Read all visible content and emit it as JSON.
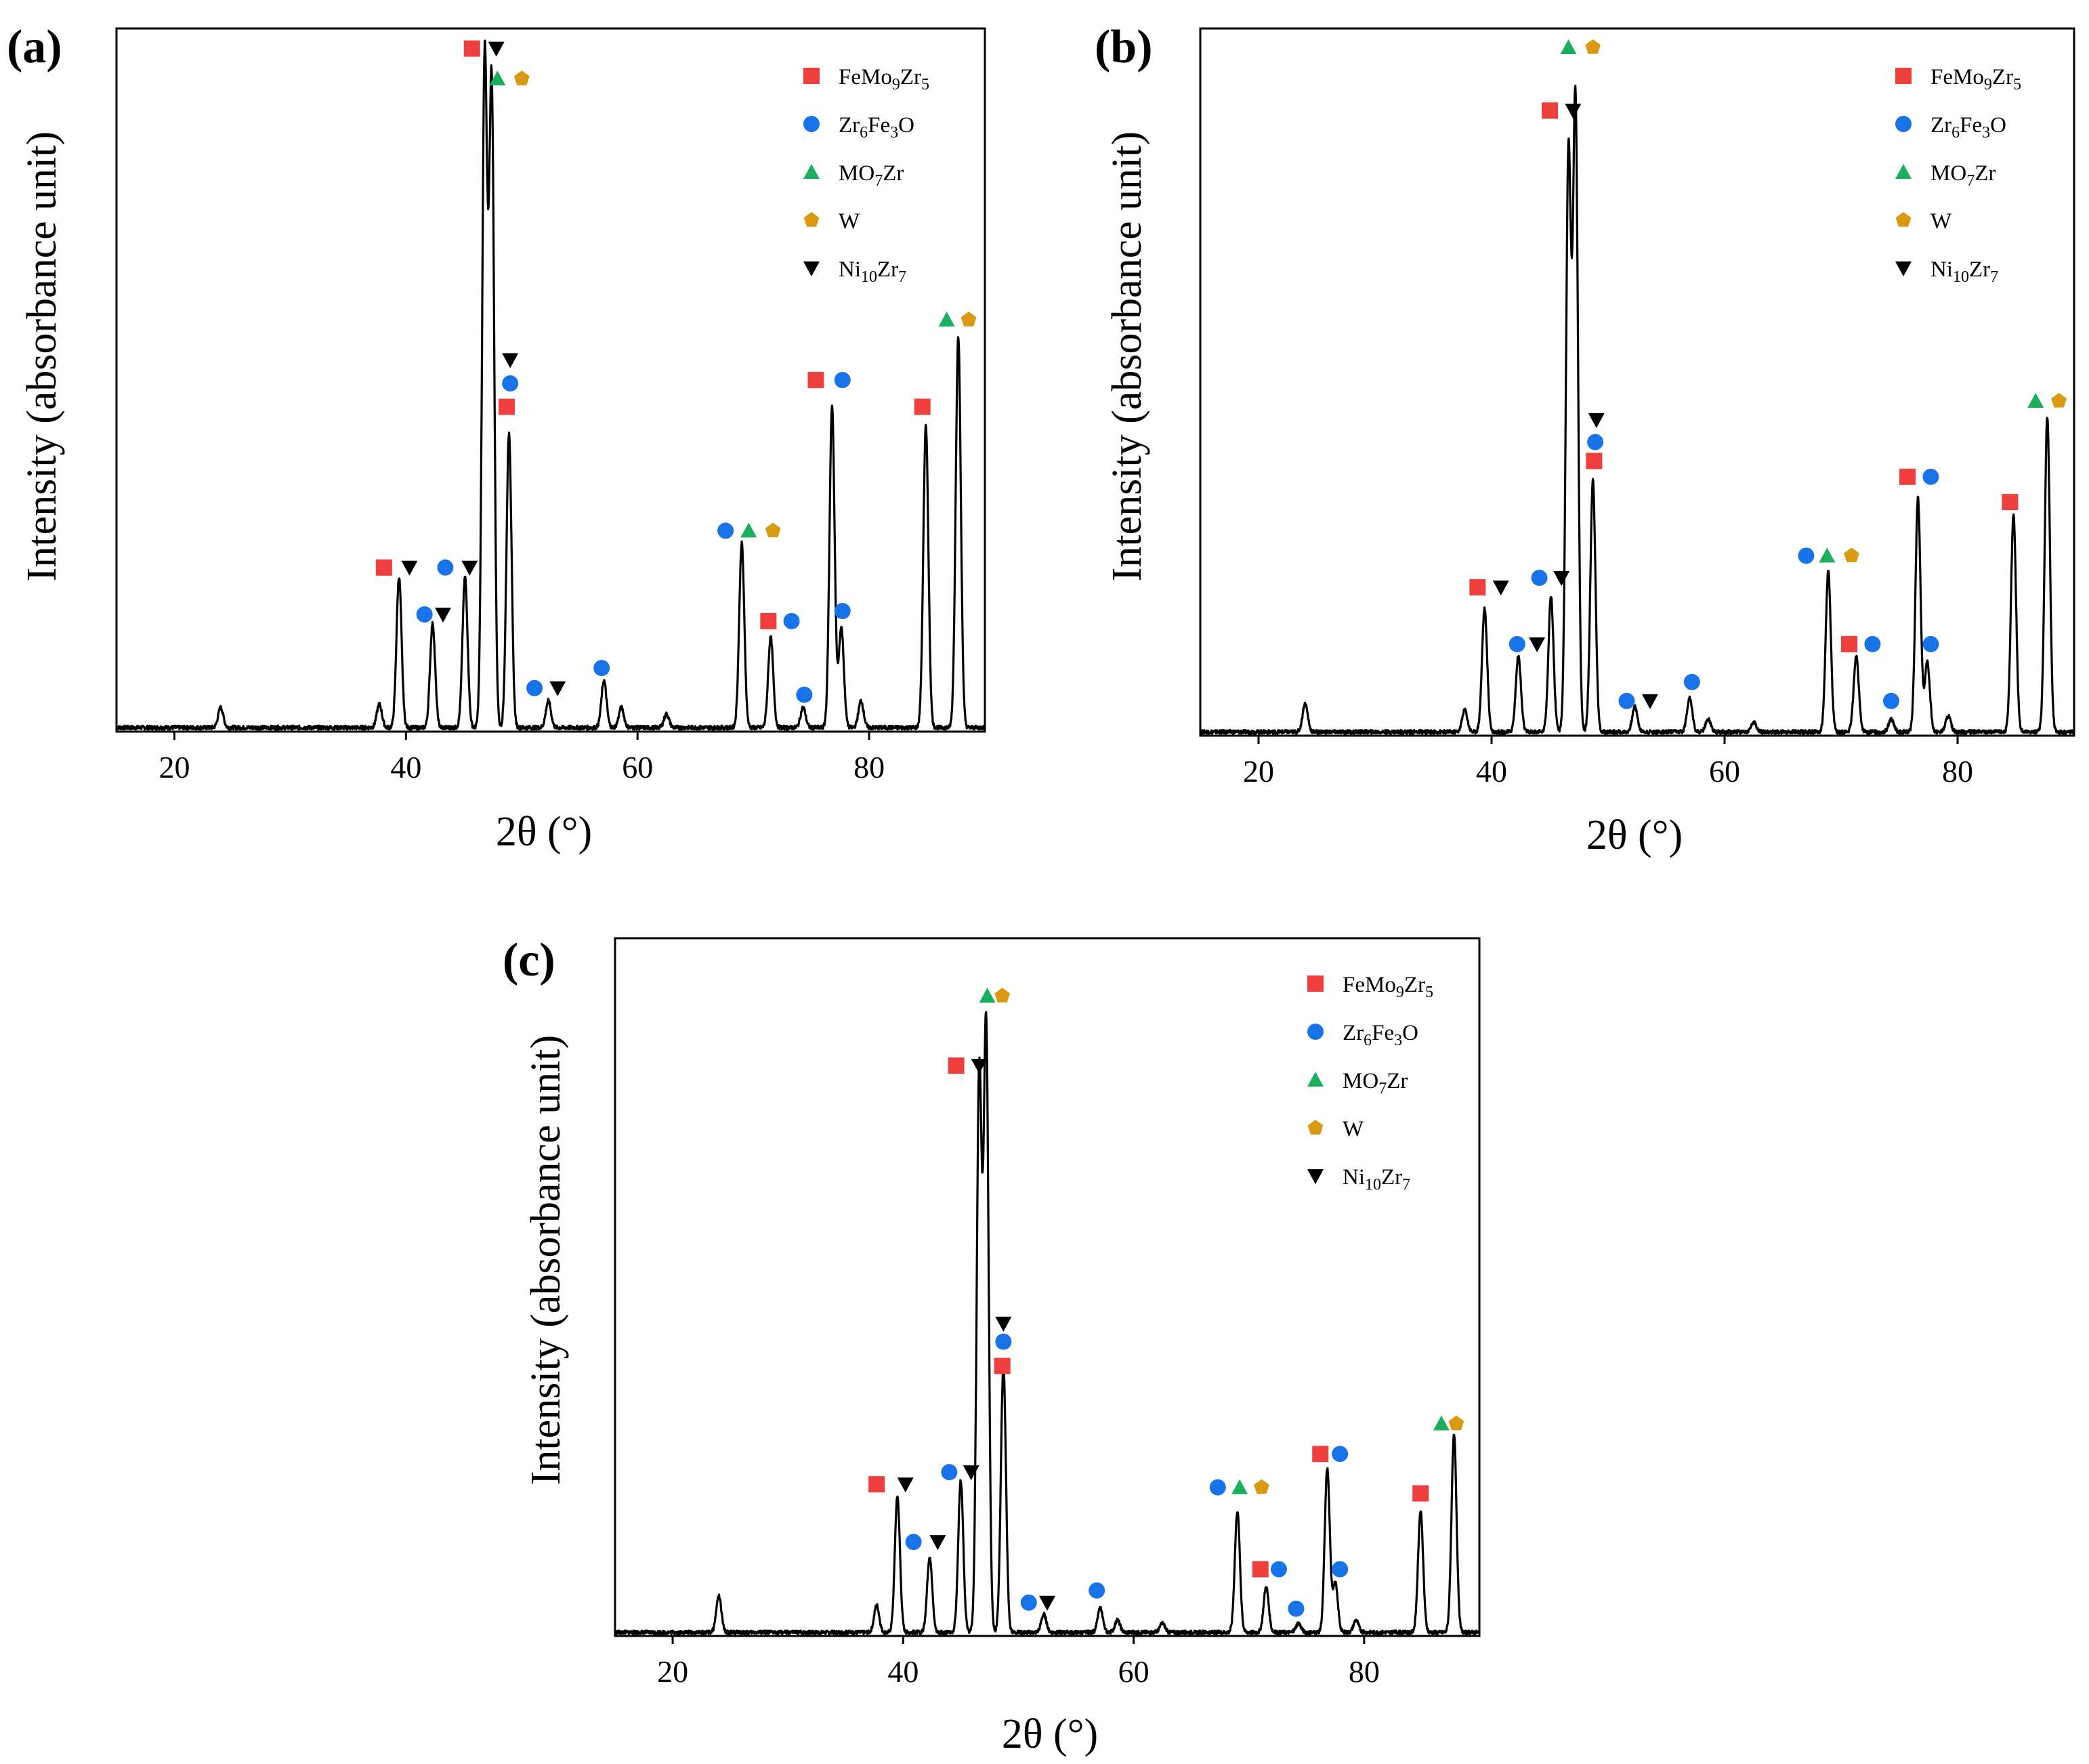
{
  "colors": {
    "FeMo9Zr5": "#ef3e3e",
    "Zr6Fe3O": "#1873e8",
    "MO7Zr": "#1aaf5d",
    "W": "#d99a12",
    "Ni10Zr7": "#000000",
    "line": "#000000"
  },
  "chart_data": [
    {
      "type": "line",
      "panel": "(a)",
      "xlabel": "2θ (°)",
      "ylabel": "Intensity (absorbance unit)",
      "xlim": [
        15,
        90
      ],
      "ylim": [
        0,
        105
      ],
      "xticks": [
        20,
        40,
        60,
        80
      ],
      "xtick_labels": [
        "20",
        "40",
        "60",
        "80"
      ],
      "legend": [
        {
          "phase": "FeMo9Zr5",
          "marker": "square",
          "label_base": "FeMo",
          "label_sub1": "9",
          "label_mid": "Zr",
          "label_sub2": "5",
          "label_end": ""
        },
        {
          "phase": "Zr6Fe3O",
          "marker": "circle",
          "label_base": "Zr",
          "label_sub1": "6",
          "label_mid": "Fe",
          "label_sub2": "3",
          "label_end": "O"
        },
        {
          "phase": "MO7Zr",
          "marker": "triangle",
          "label_base": "MO",
          "label_sub1": "7",
          "label_mid": "Zr",
          "label_sub2": "",
          "label_end": ""
        },
        {
          "phase": "W",
          "marker": "pentagon",
          "label_base": "W",
          "label_sub1": "",
          "label_mid": "",
          "label_sub2": "",
          "label_end": ""
        },
        {
          "phase": "Ni10Zr7",
          "marker": "triangle-down",
          "label_base": "Ni",
          "label_sub1": "10",
          "label_mid": "Zr",
          "label_sub2": "7",
          "label_end": ""
        }
      ],
      "peaks": [
        {
          "x": 24.0,
          "y": 3.0
        },
        {
          "x": 37.7,
          "y": 3.5
        },
        {
          "x": 39.4,
          "y": 22.5
        },
        {
          "x": 42.3,
          "y": 15.5
        },
        {
          "x": 45.1,
          "y": 22.5
        },
        {
          "x": 46.8,
          "y": 100
        },
        {
          "x": 47.4,
          "y": 96
        },
        {
          "x": 48.9,
          "y": 44
        },
        {
          "x": 52.3,
          "y": 4.0
        },
        {
          "x": 57.1,
          "y": 7.0
        },
        {
          "x": 58.6,
          "y": 3.0
        },
        {
          "x": 62.5,
          "y": 2.0
        },
        {
          "x": 69.0,
          "y": 27.5
        },
        {
          "x": 71.5,
          "y": 13.5
        },
        {
          "x": 74.3,
          "y": 3.0
        },
        {
          "x": 76.8,
          "y": 48.0
        },
        {
          "x": 77.6,
          "y": 15.0
        },
        {
          "x": 79.3,
          "y": 4.0
        },
        {
          "x": 84.9,
          "y": 45.0
        },
        {
          "x": 87.7,
          "y": 58.5
        }
      ],
      "annotations": [
        {
          "x": 38.1,
          "y": 24.5,
          "phase": "FeMo9Zr5"
        },
        {
          "x": 40.3,
          "y": 24.5,
          "phase": "Ni10Zr7"
        },
        {
          "x": 41.6,
          "y": 17.5,
          "phase": "Zr6Fe3O"
        },
        {
          "x": 43.2,
          "y": 17.5,
          "phase": "Ni10Zr7"
        },
        {
          "x": 43.4,
          "y": 24.5,
          "phase": "Zr6Fe3O"
        },
        {
          "x": 45.5,
          "y": 24.5,
          "phase": "Ni10Zr7"
        },
        {
          "x": 45.7,
          "y": 102,
          "phase": "FeMo9Zr5"
        },
        {
          "x": 47.8,
          "y": 102,
          "phase": "Ni10Zr7"
        },
        {
          "x": 47.9,
          "y": 97.5,
          "phase": "MO7Zr"
        },
        {
          "x": 50.0,
          "y": 97.5,
          "phase": "W"
        },
        {
          "x": 49.0,
          "y": 55.5,
          "phase": "Ni10Zr7"
        },
        {
          "x": 49.0,
          "y": 52.0,
          "phase": "Zr6Fe3O"
        },
        {
          "x": 48.7,
          "y": 48.5,
          "phase": "FeMo9Zr5"
        },
        {
          "x": 51.1,
          "y": 6.5,
          "phase": "Zr6Fe3O"
        },
        {
          "x": 53.1,
          "y": 6.5,
          "phase": "Ni10Zr7"
        },
        {
          "x": 56.9,
          "y": 9.5,
          "phase": "Zr6Fe3O"
        },
        {
          "x": 67.6,
          "y": 30.0,
          "phase": "Zr6Fe3O"
        },
        {
          "x": 69.6,
          "y": 30.0,
          "phase": "MO7Zr"
        },
        {
          "x": 71.7,
          "y": 30.0,
          "phase": "W"
        },
        {
          "x": 71.3,
          "y": 16.5,
          "phase": "FeMo9Zr5"
        },
        {
          "x": 73.3,
          "y": 16.5,
          "phase": "Zr6Fe3O"
        },
        {
          "x": 74.4,
          "y": 5.5,
          "phase": "Zr6Fe3O"
        },
        {
          "x": 77.7,
          "y": 18.0,
          "phase": "Zr6Fe3O"
        },
        {
          "x": 75.4,
          "y": 52.5,
          "phase": "FeMo9Zr5"
        },
        {
          "x": 77.7,
          "y": 52.5,
          "phase": "Zr6Fe3O"
        },
        {
          "x": 84.6,
          "y": 48.5,
          "phase": "FeMo9Zr5"
        },
        {
          "x": 86.7,
          "y": 61.5,
          "phase": "MO7Zr"
        },
        {
          "x": 88.6,
          "y": 61.5,
          "phase": "W"
        }
      ]
    },
    {
      "type": "line",
      "panel": "(b)",
      "xlabel": "2θ (°)",
      "ylabel": "Intensity (absorbance unit)",
      "xlim": [
        15,
        90
      ],
      "ylim": [
        0,
        112
      ],
      "xticks": [
        20,
        40,
        60,
        80
      ],
      "xtick_labels": [
        "20",
        "40",
        "60",
        "80"
      ],
      "legend": [
        {
          "phase": "FeMo9Zr5",
          "marker": "square",
          "label_base": "FeMo",
          "label_sub1": "9",
          "label_mid": "Zr",
          "label_sub2": "5",
          "label_end": ""
        },
        {
          "phase": "Zr6Fe3O",
          "marker": "circle",
          "label_base": "Zr",
          "label_sub1": "6",
          "label_mid": "Fe",
          "label_sub2": "3",
          "label_end": "O"
        },
        {
          "phase": "MO7Zr",
          "marker": "triangle",
          "label_base": "MO",
          "label_sub1": "7",
          "label_mid": "Zr",
          "label_sub2": "",
          "label_end": ""
        },
        {
          "phase": "W",
          "marker": "pentagon",
          "label_base": "W",
          "label_sub1": "",
          "label_mid": "",
          "label_sub2": "",
          "label_end": ""
        },
        {
          "phase": "Ni10Zr7",
          "marker": "triangle-down",
          "label_base": "Ni",
          "label_sub1": "10",
          "label_mid": "Zr",
          "label_sub2": "7",
          "label_end": ""
        }
      ],
      "peaks": [
        {
          "x": 24.0,
          "y": 4.5
        },
        {
          "x": 37.7,
          "y": 3.5
        },
        {
          "x": 39.4,
          "y": 19.5
        },
        {
          "x": 42.3,
          "y": 12.0
        },
        {
          "x": 45.1,
          "y": 21.5
        },
        {
          "x": 46.6,
          "y": 91
        },
        {
          "x": 47.2,
          "y": 100
        },
        {
          "x": 48.7,
          "y": 40.0
        },
        {
          "x": 52.3,
          "y": 4.0
        },
        {
          "x": 57.0,
          "y": 5.5
        },
        {
          "x": 58.6,
          "y": 2.0
        },
        {
          "x": 62.5,
          "y": 1.5
        },
        {
          "x": 68.9,
          "y": 25.5
        },
        {
          "x": 71.3,
          "y": 12.0
        },
        {
          "x": 74.3,
          "y": 2.0
        },
        {
          "x": 76.6,
          "y": 37.0
        },
        {
          "x": 77.4,
          "y": 11.0
        },
        {
          "x": 79.2,
          "y": 2.5
        },
        {
          "x": 84.8,
          "y": 34.5
        },
        {
          "x": 87.7,
          "y": 50.0
        }
      ],
      "annotations": [
        {
          "x": 38.8,
          "y": 23.5,
          "phase": "FeMo9Zr5"
        },
        {
          "x": 40.8,
          "y": 23.5,
          "phase": "Ni10Zr7"
        },
        {
          "x": 42.2,
          "y": 14.5,
          "phase": "Zr6Fe3O"
        },
        {
          "x": 43.9,
          "y": 14.5,
          "phase": "Ni10Zr7"
        },
        {
          "x": 44.1,
          "y": 25.0,
          "phase": "Zr6Fe3O"
        },
        {
          "x": 46.0,
          "y": 25.0,
          "phase": "Ni10Zr7"
        },
        {
          "x": 45.0,
          "y": 99.0,
          "phase": "FeMo9Zr5"
        },
        {
          "x": 47.0,
          "y": 99.0,
          "phase": "Ni10Zr7"
        },
        {
          "x": 46.6,
          "y": 109.0,
          "phase": "MO7Zr"
        },
        {
          "x": 48.7,
          "y": 109.0,
          "phase": "W"
        },
        {
          "x": 49.0,
          "y": 50.0,
          "phase": "Ni10Zr7"
        },
        {
          "x": 48.9,
          "y": 46.5,
          "phase": "Zr6Fe3O"
        },
        {
          "x": 48.8,
          "y": 43.5,
          "phase": "FeMo9Zr5"
        },
        {
          "x": 51.6,
          "y": 5.5,
          "phase": "Zr6Fe3O"
        },
        {
          "x": 53.6,
          "y": 5.5,
          "phase": "Ni10Zr7"
        },
        {
          "x": 57.2,
          "y": 8.5,
          "phase": "Zr6Fe3O"
        },
        {
          "x": 67.0,
          "y": 28.5,
          "phase": "Zr6Fe3O"
        },
        {
          "x": 68.8,
          "y": 28.5,
          "phase": "MO7Zr"
        },
        {
          "x": 70.9,
          "y": 28.5,
          "phase": "W"
        },
        {
          "x": 70.7,
          "y": 14.5,
          "phase": "FeMo9Zr5"
        },
        {
          "x": 72.7,
          "y": 14.5,
          "phase": "Zr6Fe3O"
        },
        {
          "x": 74.3,
          "y": 5.5,
          "phase": "Zr6Fe3O"
        },
        {
          "x": 77.7,
          "y": 14.5,
          "phase": "Zr6Fe3O"
        },
        {
          "x": 75.7,
          "y": 41.0,
          "phase": "FeMo9Zr5"
        },
        {
          "x": 77.7,
          "y": 41.0,
          "phase": "Zr6Fe3O"
        },
        {
          "x": 84.5,
          "y": 37.0,
          "phase": "FeMo9Zr5"
        },
        {
          "x": 86.7,
          "y": 53.0,
          "phase": "MO7Zr"
        },
        {
          "x": 88.7,
          "y": 53.0,
          "phase": "W"
        }
      ]
    },
    {
      "type": "line",
      "panel": "(c)",
      "xlabel": "2θ (°)",
      "ylabel": "Intensity (absorbance unit)",
      "xlim": [
        15,
        90
      ],
      "ylim": [
        0,
        115
      ],
      "xticks": [
        20,
        40,
        60,
        80
      ],
      "xtick_labels": [
        "20",
        "40",
        "60",
        "80"
      ],
      "legend": [
        {
          "phase": "FeMo9Zr5",
          "marker": "square",
          "label_base": "FeMo",
          "label_sub1": "9",
          "label_mid": "Zr",
          "label_sub2": "5",
          "label_end": ""
        },
        {
          "phase": "Zr6Fe3O",
          "marker": "circle",
          "label_base": "Zr",
          "label_sub1": "6",
          "label_mid": "Fe",
          "label_sub2": "3",
          "label_end": "O"
        },
        {
          "phase": "MO7Zr",
          "marker": "triangle",
          "label_base": "MO",
          "label_sub1": "7",
          "label_mid": "Zr",
          "label_sub2": "",
          "label_end": ""
        },
        {
          "phase": "W",
          "marker": "pentagon",
          "label_base": "W",
          "label_sub1": "",
          "label_mid": "",
          "label_sub2": "",
          "label_end": ""
        },
        {
          "phase": "Ni10Zr7",
          "marker": "triangle-down",
          "label_base": "Ni",
          "label_sub1": "10",
          "label_mid": "Zr",
          "label_sub2": "7",
          "label_end": ""
        }
      ],
      "peaks": [
        {
          "x": 24.0,
          "y": 6.0
        },
        {
          "x": 37.7,
          "y": 4.5
        },
        {
          "x": 39.5,
          "y": 22.5
        },
        {
          "x": 42.3,
          "y": 12.5
        },
        {
          "x": 45.0,
          "y": 25.0
        },
        {
          "x": 46.6,
          "y": 92
        },
        {
          "x": 47.2,
          "y": 100
        },
        {
          "x": 48.7,
          "y": 44.0
        },
        {
          "x": 52.2,
          "y": 3.0
        },
        {
          "x": 57.1,
          "y": 4.0
        },
        {
          "x": 58.6,
          "y": 2.0
        },
        {
          "x": 62.5,
          "y": 1.5
        },
        {
          "x": 69.0,
          "y": 20.0
        },
        {
          "x": 71.5,
          "y": 7.5
        },
        {
          "x": 74.3,
          "y": 1.5
        },
        {
          "x": 76.8,
          "y": 27.0
        },
        {
          "x": 77.5,
          "y": 8.0
        },
        {
          "x": 79.3,
          "y": 2.0
        },
        {
          "x": 84.9,
          "y": 20.0
        },
        {
          "x": 87.8,
          "y": 32.5
        }
      ],
      "annotations": [
        {
          "x": 37.7,
          "y": 25.0,
          "phase": "FeMo9Zr5"
        },
        {
          "x": 40.2,
          "y": 25.0,
          "phase": "Ni10Zr7"
        },
        {
          "x": 40.9,
          "y": 15.5,
          "phase": "Zr6Fe3O"
        },
        {
          "x": 43.0,
          "y": 15.5,
          "phase": "Ni10Zr7"
        },
        {
          "x": 44.0,
          "y": 27.0,
          "phase": "Zr6Fe3O"
        },
        {
          "x": 45.9,
          "y": 27.0,
          "phase": "Ni10Zr7"
        },
        {
          "x": 44.6,
          "y": 94.0,
          "phase": "FeMo9Zr5"
        },
        {
          "x": 46.6,
          "y": 94.0,
          "phase": "Ni10Zr7"
        },
        {
          "x": 47.3,
          "y": 105.5,
          "phase": "MO7Zr"
        },
        {
          "x": 48.6,
          "y": 105.5,
          "phase": "W"
        },
        {
          "x": 48.7,
          "y": 51.5,
          "phase": "Ni10Zr7"
        },
        {
          "x": 48.7,
          "y": 48.5,
          "phase": "Zr6Fe3O"
        },
        {
          "x": 48.6,
          "y": 44.5,
          "phase": "FeMo9Zr5"
        },
        {
          "x": 50.9,
          "y": 5.5,
          "phase": "Zr6Fe3O"
        },
        {
          "x": 52.5,
          "y": 5.5,
          "phase": "Ni10Zr7"
        },
        {
          "x": 56.8,
          "y": 7.5,
          "phase": "Zr6Fe3O"
        },
        {
          "x": 67.3,
          "y": 24.5,
          "phase": "Zr6Fe3O"
        },
        {
          "x": 69.2,
          "y": 24.5,
          "phase": "MO7Zr"
        },
        {
          "x": 71.1,
          "y": 24.5,
          "phase": "W"
        },
        {
          "x": 71.0,
          "y": 11.0,
          "phase": "FeMo9Zr5"
        },
        {
          "x": 72.6,
          "y": 11.0,
          "phase": "Zr6Fe3O"
        },
        {
          "x": 74.1,
          "y": 4.5,
          "phase": "Zr6Fe3O"
        },
        {
          "x": 77.9,
          "y": 11.0,
          "phase": "Zr6Fe3O"
        },
        {
          "x": 76.2,
          "y": 30.0,
          "phase": "FeMo9Zr5"
        },
        {
          "x": 77.9,
          "y": 30.0,
          "phase": "Zr6Fe3O"
        },
        {
          "x": 84.9,
          "y": 23.5,
          "phase": "FeMo9Zr5"
        },
        {
          "x": 86.7,
          "y": 35.0,
          "phase": "MO7Zr"
        },
        {
          "x": 88.0,
          "y": 35.0,
          "phase": "W"
        }
      ]
    }
  ]
}
